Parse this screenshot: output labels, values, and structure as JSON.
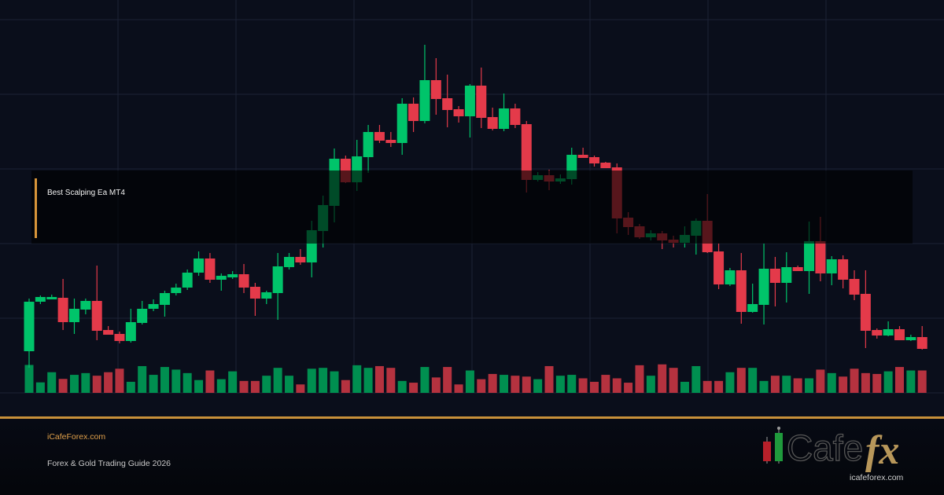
{
  "overlay": {
    "title": "Best Scalping Ea MT4"
  },
  "footer": {
    "site": "iCafeForex.com",
    "subtitle": "Forex & Gold Trading Guide 2026"
  },
  "logo": {
    "word": "Cafe",
    "fx": "fx",
    "url": "icafeforex.com"
  },
  "colors": {
    "background": "#0a0e1b",
    "grid": "#1c2235",
    "up": "#00c46a",
    "down": "#e43a4a",
    "volume_up": "#008f50",
    "volume_down": "#b5323f",
    "accent": "#c8903a"
  },
  "chart_data": {
    "type": "candlestick",
    "title": "",
    "grid": true,
    "fields": [
      "open",
      "high",
      "low",
      "close",
      "volume"
    ],
    "candles": [
      [
        53,
        120,
        32,
        116,
        96
      ],
      [
        116,
        124,
        113,
        122,
        36
      ],
      [
        119,
        125,
        119,
        122,
        71
      ],
      [
        121,
        145,
        80,
        90,
        48
      ],
      [
        90,
        120,
        75,
        107,
        62
      ],
      [
        106,
        120,
        100,
        117,
        68
      ],
      [
        117,
        162,
        67,
        79,
        59
      ],
      [
        80,
        85,
        74,
        74,
        71
      ],
      [
        75,
        78,
        63,
        66,
        83
      ],
      [
        66,
        107,
        64,
        90,
        38
      ],
      [
        89,
        117,
        87,
        107,
        92
      ],
      [
        107,
        119,
        104,
        113,
        62
      ],
      [
        112,
        130,
        97,
        127,
        89
      ],
      [
        127,
        139,
        124,
        134,
        80
      ],
      [
        134,
        157,
        131,
        153,
        68
      ],
      [
        153,
        180,
        149,
        171,
        44
      ],
      [
        171,
        178,
        140,
        144,
        77
      ],
      [
        144,
        152,
        130,
        149,
        47
      ],
      [
        147,
        155,
        145,
        151,
        74
      ],
      [
        151,
        164,
        127,
        134,
        41
      ],
      [
        135,
        140,
        98,
        120,
        41
      ],
      [
        120,
        130,
        113,
        128,
        59
      ],
      [
        127,
        178,
        93,
        161,
        86
      ],
      [
        160,
        178,
        157,
        173,
        59
      ],
      [
        173,
        183,
        163,
        166,
        29
      ],
      [
        166,
        219,
        147,
        207,
        83
      ],
      [
        206,
        251,
        185,
        239,
        86
      ],
      [
        238,
        311,
        217,
        298,
        74
      ],
      [
        298,
        302,
        267,
        268,
        44
      ],
      [
        268,
        322,
        257,
        301,
        95
      ],
      [
        300,
        341,
        280,
        332,
        86
      ],
      [
        332,
        341,
        318,
        321,
        92
      ],
      [
        322,
        332,
        313,
        318,
        86
      ],
      [
        318,
        375,
        303,
        368,
        41
      ],
      [
        368,
        376,
        332,
        346,
        35
      ],
      [
        346,
        443,
        343,
        398,
        89
      ],
      [
        398,
        426,
        354,
        374,
        53
      ],
      [
        375,
        405,
        338,
        360,
        89
      ],
      [
        361,
        365,
        344,
        352,
        29
      ],
      [
        352,
        393,
        325,
        391,
        77
      ],
      [
        391,
        414,
        337,
        350,
        47
      ],
      [
        351,
        363,
        334,
        336,
        65
      ],
      [
        336,
        381,
        333,
        362,
        62
      ],
      [
        362,
        368,
        337,
        341,
        59
      ],
      [
        342,
        346,
        255,
        271,
        56
      ],
      [
        271,
        281,
        269,
        277,
        47
      ],
      [
        277,
        284,
        258,
        269,
        92
      ],
      [
        269,
        278,
        266,
        273,
        59
      ],
      [
        272,
        312,
        265,
        303,
        62
      ],
      [
        303,
        312,
        299,
        299,
        50
      ],
      [
        300,
        302,
        288,
        292,
        38
      ],
      [
        293,
        294,
        286,
        286,
        62
      ],
      [
        287,
        292,
        203,
        222,
        50
      ],
      [
        223,
        230,
        201,
        211,
        35
      ],
      [
        212,
        215,
        196,
        198,
        95
      ],
      [
        198,
        207,
        194,
        203,
        59
      ],
      [
        203,
        206,
        183,
        194,
        98
      ],
      [
        195,
        200,
        185,
        191,
        86
      ],
      [
        191,
        212,
        185,
        201,
        38
      ],
      [
        200,
        222,
        176,
        219,
        92
      ],
      [
        219,
        253,
        178,
        179,
        41
      ],
      [
        180,
        190,
        132,
        138,
        41
      ],
      [
        138,
        159,
        136,
        156,
        71
      ],
      [
        156,
        178,
        88,
        103,
        86
      ],
      [
        103,
        139,
        102,
        113,
        86
      ],
      [
        112,
        190,
        87,
        158,
        41
      ],
      [
        158,
        173,
        110,
        140,
        59
      ],
      [
        140,
        179,
        115,
        160,
        59
      ],
      [
        160,
        162,
        155,
        155,
        50
      ],
      [
        155,
        218,
        126,
        193,
        50
      ],
      [
        193,
        224,
        142,
        152,
        80
      ],
      [
        152,
        174,
        137,
        170,
        68
      ],
      [
        170,
        175,
        133,
        144,
        56
      ],
      [
        145,
        156,
        118,
        125,
        83
      ],
      [
        126,
        156,
        57,
        79,
        68
      ],
      [
        80,
        82,
        69,
        73,
        65
      ],
      [
        73,
        91,
        72,
        81,
        74
      ],
      [
        81,
        85,
        67,
        67,
        89
      ],
      [
        67,
        74,
        66,
        71,
        77
      ],
      [
        71,
        85,
        55,
        56,
        77
      ]
    ]
  }
}
